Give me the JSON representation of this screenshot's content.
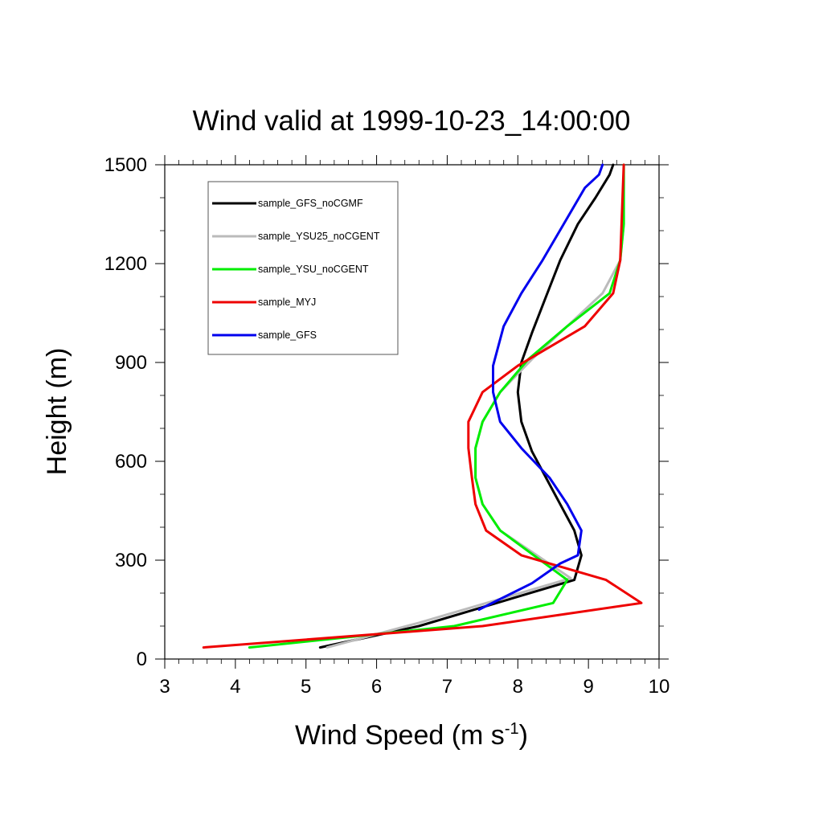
{
  "chart_data": {
    "type": "line",
    "title": "Wind valid at 1999-10-23_14:00:00",
    "xlabel": "Wind Speed (m s",
    "xlabel_sup": "-1",
    "xlabel_tail": ")",
    "ylabel": "Height (m)",
    "xlim": [
      3,
      10
    ],
    "ylim": [
      0,
      1500
    ],
    "xticks": [
      "3",
      "4",
      "5",
      "6",
      "7",
      "8",
      "9",
      "10"
    ],
    "yticks": [
      "0",
      "300",
      "600",
      "900",
      "1200",
      "1500"
    ],
    "grid": false,
    "legend_position": "top-left",
    "series": [
      {
        "name": "sample_GFS_noCGMF",
        "color": "#000000",
        "x": [
          5.2,
          6.6,
          8.8,
          8.9,
          8.8,
          8.6,
          8.4,
          8.2,
          8.05,
          8.0,
          8.05,
          8.2,
          8.4,
          8.6,
          8.85,
          9.1,
          9.3,
          9.35
        ],
        "y": [
          35,
          100,
          240,
          315,
          390,
          470,
          550,
          630,
          720,
          810,
          900,
          990,
          1100,
          1210,
          1320,
          1400,
          1470,
          1500
        ]
      },
      {
        "name": "sample_YSU25_noCGENT",
        "color": "#bbbbbb",
        "x": [
          5.3,
          6.6,
          8.75,
          7.75,
          7.5,
          7.4,
          7.4,
          7.5,
          7.75,
          8.2,
          9.2,
          9.45,
          9.5,
          9.5
        ],
        "y": [
          35,
          110,
          245,
          390,
          470,
          550,
          640,
          720,
          810,
          910,
          1110,
          1210,
          1320,
          1500
        ]
      },
      {
        "name": "sample_YSU_noCGENT",
        "color": "#00ee00",
        "x": [
          4.2,
          7.1,
          8.5,
          8.7,
          7.75,
          7.5,
          7.4,
          7.4,
          7.5,
          7.75,
          8.15,
          8.7,
          9.3,
          9.45,
          9.5,
          9.5
        ],
        "y": [
          35,
          100,
          170,
          240,
          390,
          470,
          550,
          640,
          720,
          810,
          910,
          1010,
          1110,
          1210,
          1320,
          1500
        ]
      },
      {
        "name": "sample_MYJ",
        "color": "#ee0000",
        "x": [
          3.55,
          7.5,
          9.75,
          9.25,
          8.05,
          7.55,
          7.4,
          7.35,
          7.3,
          7.3,
          7.5,
          8.0,
          8.95,
          9.35,
          9.45,
          9.5
        ],
        "y": [
          35,
          100,
          170,
          240,
          315,
          390,
          470,
          550,
          640,
          720,
          810,
          890,
          1010,
          1110,
          1210,
          1500
        ]
      },
      {
        "name": "sample_GFS",
        "color": "#0000ee",
        "x": [
          7.45,
          8.2,
          8.6,
          8.85,
          8.9,
          8.7,
          8.45,
          8.05,
          7.75,
          7.65,
          7.65,
          7.8,
          8.05,
          8.35,
          8.65,
          8.95,
          9.15,
          9.2
        ],
        "y": [
          150,
          230,
          290,
          315,
          390,
          470,
          550,
          640,
          720,
          810,
          890,
          1010,
          1110,
          1210,
          1320,
          1430,
          1470,
          1500
        ]
      }
    ]
  }
}
